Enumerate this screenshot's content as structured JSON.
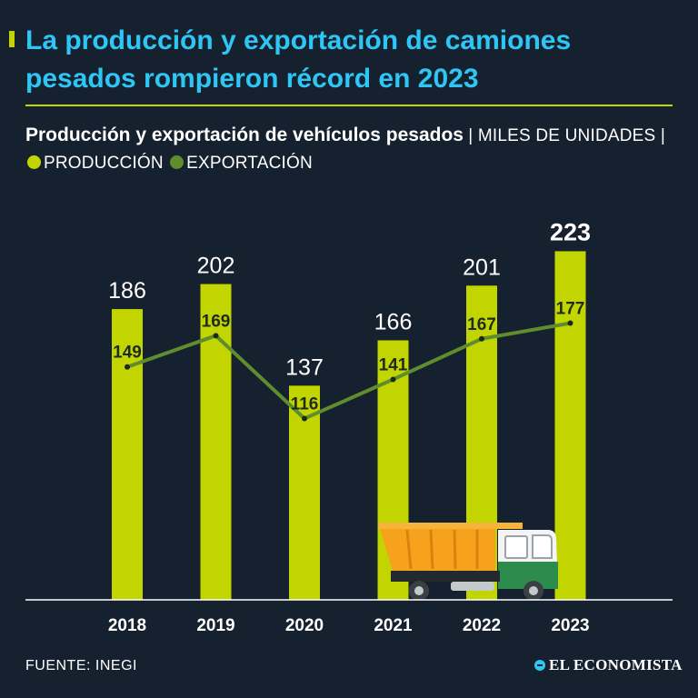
{
  "headline": "La producción y exportación de camiones pesados rompieron récord en 2023",
  "subtitle": {
    "bold": "Producción y exportación de vehículos pesados",
    "unit": "| MILES DE UNIDADES |",
    "legend_production": "PRODUCCIÓN",
    "legend_export": "EXPORTACIÓN"
  },
  "colors": {
    "background": "#162130",
    "headline": "#2ec6f4",
    "production": "#c3d500",
    "export": "#5f8c2c"
  },
  "chart_data": {
    "type": "bar",
    "title": "Producción y exportación de vehículos pesados",
    "ylabel": "Miles de unidades",
    "xlabel": "",
    "ylim": [
      0,
      240
    ],
    "categories": [
      "2018",
      "2019",
      "2020",
      "2021",
      "2022",
      "2023"
    ],
    "series": [
      {
        "name": "PRODUCCIÓN",
        "type": "bar",
        "values": [
          186,
          202,
          137,
          166,
          201,
          223
        ],
        "highlight_index": 5
      },
      {
        "name": "EXPORTACIÓN",
        "type": "line",
        "values": [
          149,
          169,
          116,
          141,
          167,
          177
        ]
      }
    ]
  },
  "footer": {
    "source": "FUENTE: INEGI",
    "brand": "EL ECONOMISTA"
  }
}
